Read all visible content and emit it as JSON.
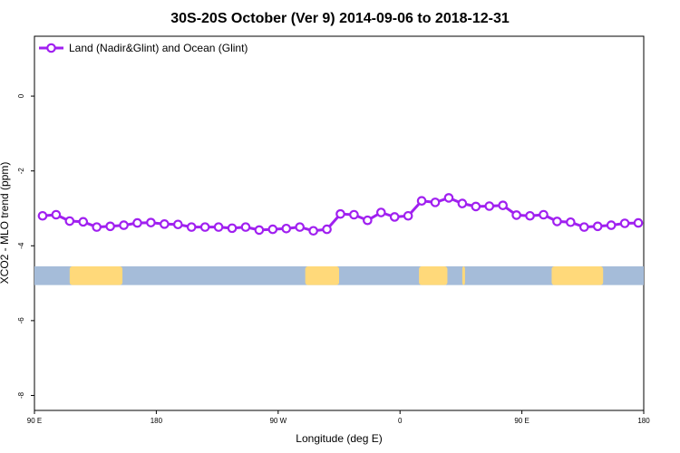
{
  "chart_data": {
    "type": "line",
    "title": "30S-20S October (Ver 9)   2014-09-06 to 2018-12-31",
    "xlabel": "Longitude (deg E)",
    "ylabel": "XCO2 - MLO trend (ppm)",
    "xlim": [
      90,
      540
    ],
    "ylim": [
      -8.4,
      1.6
    ],
    "x_ticks": [
      {
        "value": 90,
        "label": "90 E"
      },
      {
        "value": 180,
        "label": "180"
      },
      {
        "value": 270,
        "label": "90 W"
      },
      {
        "value": 360,
        "label": "0"
      },
      {
        "value": 450,
        "label": "90 E"
      },
      {
        "value": 540,
        "label": "180"
      }
    ],
    "y_ticks": [
      {
        "value": 0,
        "label": "0"
      },
      {
        "value": -2,
        "label": "-2"
      },
      {
        "value": -4,
        "label": "-4"
      },
      {
        "value": -6,
        "label": "-6"
      },
      {
        "value": -8,
        "label": "-8"
      }
    ],
    "legend_position": "top-left",
    "grid": false,
    "series": [
      {
        "name": "Land (Nadir&Glint) and Ocean (Glint)",
        "color": "#a020f0",
        "x": [
          96,
          106,
          116,
          126,
          136,
          146,
          156,
          166,
          176,
          186,
          196,
          206,
          216,
          226,
          236,
          246,
          256,
          266,
          276,
          286,
          296,
          306,
          316,
          326,
          336,
          346,
          356,
          366,
          376,
          386,
          396,
          406,
          416,
          426,
          436,
          446,
          456,
          466,
          476,
          486,
          496,
          506,
          516,
          526,
          536
        ],
        "y": [
          -3.2,
          -3.17,
          -3.34,
          -3.36,
          -3.5,
          -3.48,
          -3.45,
          -3.39,
          -3.38,
          -3.42,
          -3.43,
          -3.5,
          -3.5,
          -3.5,
          -3.53,
          -3.5,
          -3.58,
          -3.56,
          -3.54,
          -3.5,
          -3.6,
          -3.56,
          -3.15,
          -3.17,
          -3.32,
          -3.11,
          -3.23,
          -3.2,
          -2.8,
          -2.84,
          -2.72,
          -2.87,
          -2.95,
          -2.94,
          -2.92,
          -3.18,
          -3.2,
          -3.17,
          -3.35,
          -3.37,
          -3.5,
          -3.48,
          -3.45,
          -3.4,
          -3.39
        ]
      }
    ],
    "land_ocean_strip": {
      "y_range": [
        -4.55,
        -5.05
      ],
      "ocean_color": "#a5bcd9",
      "land_color": "#ffd97a",
      "land_segments": [
        [
          116,
          155
        ],
        [
          290,
          315
        ],
        [
          374,
          395
        ],
        [
          406,
          408
        ],
        [
          472,
          510
        ]
      ]
    }
  }
}
